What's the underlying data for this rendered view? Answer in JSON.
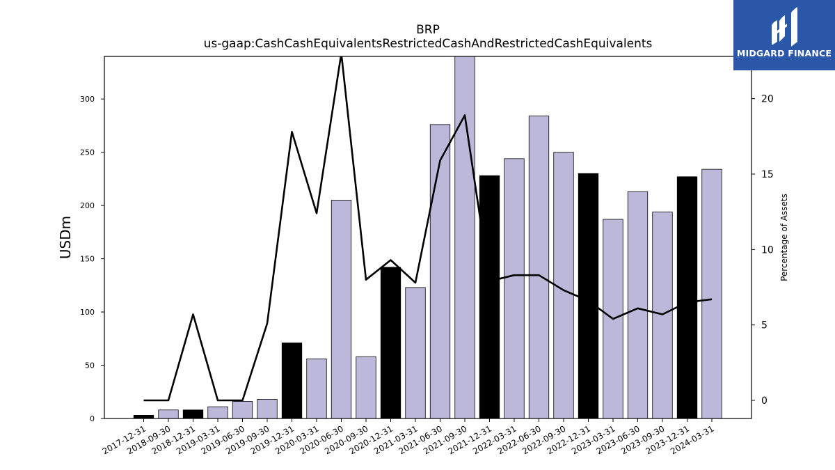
{
  "logo": {
    "text": "MIDGARD FINANCE",
    "bg_color": "#2b57a8"
  },
  "chart_data": {
    "type": "bar",
    "title": "BRP",
    "subtitle": "us-gaap:CashCashEquivalentsRestrictedCashAndRestrictedCashEquivalents",
    "ylabel": "USDm",
    "y2label": "Percentage of Assets",
    "ylim": [
      0,
      340
    ],
    "y2lim": [
      -1.2,
      22.8
    ],
    "yticks": [
      0,
      50,
      100,
      150,
      200,
      250,
      300
    ],
    "y2ticks": [
      0,
      5,
      10,
      15,
      20
    ],
    "grid": false,
    "bar_colors": {
      "year_end": "#000000",
      "quarter": "#bcb8da"
    },
    "line_color": "#000000",
    "categories": [
      "2017-12-31",
      "2018-09-30",
      "2018-12-31",
      "2019-03-31",
      "2019-06-30",
      "2019-09-30",
      "2019-12-31",
      "2020-03-31",
      "2020-06-30",
      "2020-09-30",
      "2020-12-31",
      "2021-03-31",
      "2021-06-30",
      "2021-09-30",
      "2021-12-31",
      "2022-03-31",
      "2022-06-30",
      "2022-09-30",
      "2022-12-31",
      "2023-03-31",
      "2023-06-30",
      "2023-09-30",
      "2023-12-31",
      "2024-03-31"
    ],
    "series": [
      {
        "type": "bar",
        "axis": "left",
        "values": [
          3,
          8,
          8,
          11,
          16,
          18,
          71,
          56,
          205,
          58,
          142,
          123,
          276,
          340,
          228,
          244,
          284,
          250,
          230,
          187,
          213,
          194,
          227,
          234
        ],
        "year_end": [
          true,
          false,
          true,
          false,
          false,
          false,
          true,
          false,
          false,
          false,
          true,
          false,
          false,
          false,
          true,
          false,
          false,
          false,
          true,
          false,
          false,
          false,
          true,
          false
        ]
      },
      {
        "type": "line",
        "axis": "right",
        "values": [
          0.0,
          0.0,
          5.7,
          0.0,
          0.0,
          5.1,
          17.8,
          12.4,
          23.0,
          8.0,
          9.3,
          7.8,
          15.9,
          18.9,
          7.9,
          8.3,
          8.3,
          7.3,
          6.6,
          5.4,
          6.1,
          5.7,
          6.5,
          6.7
        ]
      }
    ]
  }
}
